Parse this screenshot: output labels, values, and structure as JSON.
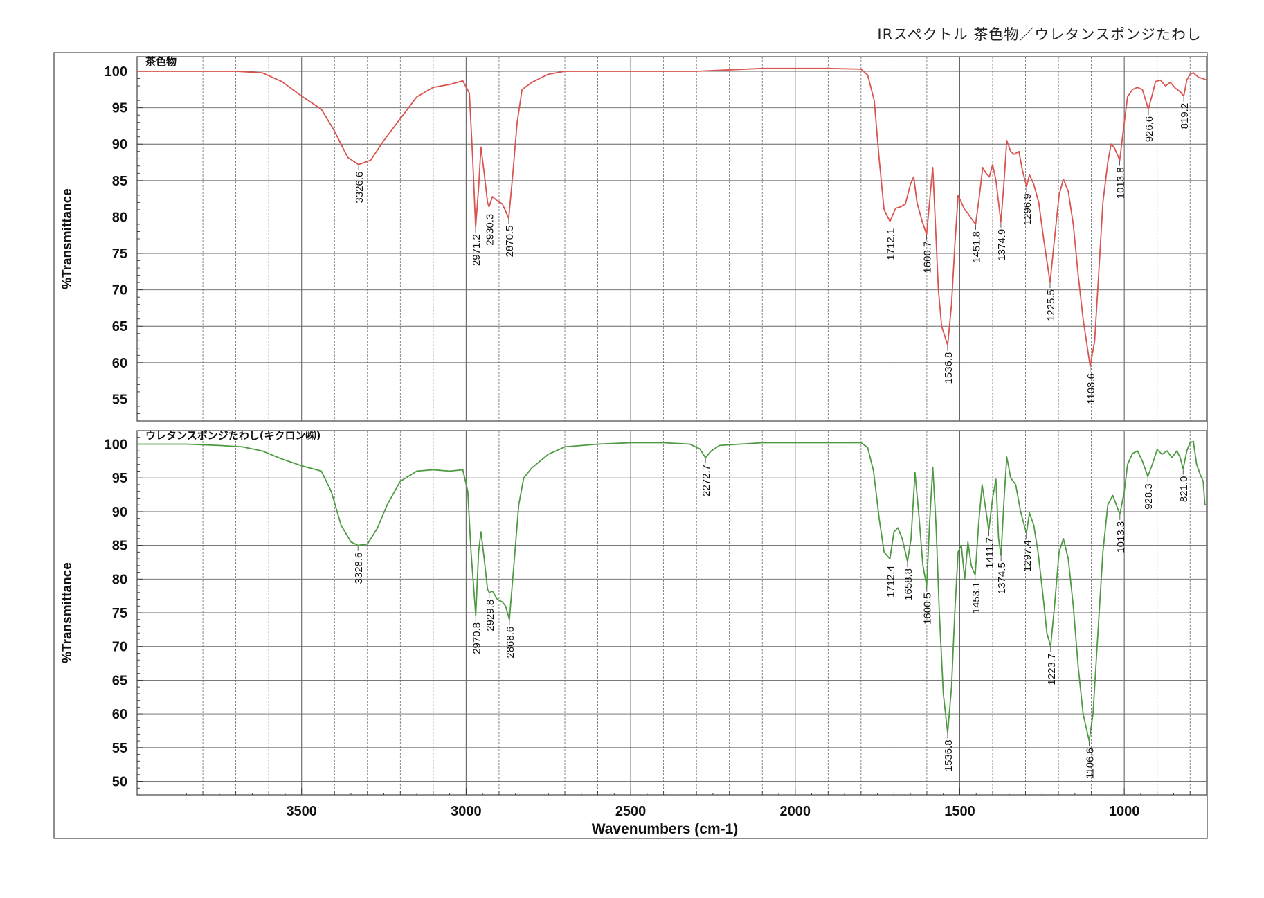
{
  "page_title": "IRスペクトル 茶色物／ウレタンスポンジたわし",
  "colors": {
    "top_series": "#d9534f",
    "bottom_series": "#4e9a43",
    "grid": "#666666",
    "frame": "#444444"
  },
  "chart_data": [
    {
      "type": "line",
      "title": "茶色物",
      "ylabel": "%Transmittance",
      "xlabel": "Wavenumbers (cm-1)",
      "x_reversed": true,
      "xlim": [
        4000,
        750
      ],
      "ylim": [
        52,
        102
      ],
      "yticks": [
        100,
        95,
        90,
        85,
        80,
        75,
        70,
        65,
        60,
        55
      ],
      "grid": true,
      "series": [
        {
          "points": [
            [
              4000,
              100
            ],
            [
              3800,
              100
            ],
            [
              3700,
              100
            ],
            [
              3620,
              99.8
            ],
            [
              3560,
              98.6
            ],
            [
              3500,
              96.6
            ],
            [
              3440,
              94.8
            ],
            [
              3400,
              91.8
            ],
            [
              3360,
              88.2
            ],
            [
              3326.6,
              87.2
            ],
            [
              3290,
              87.8
            ],
            [
              3250,
              90.5
            ],
            [
              3200,
              93.5
            ],
            [
              3150,
              96.5
            ],
            [
              3100,
              97.8
            ],
            [
              3050,
              98.2
            ],
            [
              3010,
              98.7
            ],
            [
              2990,
              97
            ],
            [
              2980,
              88
            ],
            [
              2971.2,
              78.6
            ],
            [
              2962,
              84
            ],
            [
              2955,
              89.6
            ],
            [
              2945,
              86
            ],
            [
              2935,
              82
            ],
            [
              2930.3,
              81.4
            ],
            [
              2920,
              82.8
            ],
            [
              2905,
              82.2
            ],
            [
              2890,
              81.8
            ],
            [
              2880,
              80.8
            ],
            [
              2870.5,
              79.8
            ],
            [
              2858,
              86
            ],
            [
              2845,
              93
            ],
            [
              2830,
              97.5
            ],
            [
              2800,
              98.5
            ],
            [
              2750,
              99.6
            ],
            [
              2700,
              100
            ],
            [
              2500,
              100
            ],
            [
              2300,
              100
            ],
            [
              2100,
              100.4
            ],
            [
              1900,
              100.4
            ],
            [
              1800,
              100.3
            ],
            [
              1780,
              99.5
            ],
            [
              1760,
              96
            ],
            [
              1745,
              88
            ],
            [
              1730,
              81
            ],
            [
              1712.1,
              79.4
            ],
            [
              1695,
              81.2
            ],
            [
              1680,
              81.4
            ],
            [
              1665,
              81.8
            ],
            [
              1650,
              84.5
            ],
            [
              1640,
              85.5
            ],
            [
              1630,
              82
            ],
            [
              1615,
              79.5
            ],
            [
              1600.7,
              77.6
            ],
            [
              1590,
              83
            ],
            [
              1582,
              86.8
            ],
            [
              1573,
              78
            ],
            [
              1565,
              70
            ],
            [
              1555,
              65
            ],
            [
              1536.8,
              62.4
            ],
            [
              1525,
              68
            ],
            [
              1515,
              76
            ],
            [
              1505,
              83
            ],
            [
              1495,
              82
            ],
            [
              1485,
              81
            ],
            [
              1475,
              80.5
            ],
            [
              1465,
              79.8
            ],
            [
              1451.8,
              79
            ],
            [
              1440,
              83
            ],
            [
              1430,
              86.8
            ],
            [
              1420,
              86
            ],
            [
              1410,
              85.5
            ],
            [
              1400,
              87.2
            ],
            [
              1390,
              85
            ],
            [
              1374.9,
              79.3
            ],
            [
              1365,
              85
            ],
            [
              1357,
              90.5
            ],
            [
              1345,
              89
            ],
            [
              1335,
              88.6
            ],
            [
              1320,
              89
            ],
            [
              1310,
              86.5
            ],
            [
              1296.9,
              84.2
            ],
            [
              1288,
              85.8
            ],
            [
              1275,
              84.5
            ],
            [
              1260,
              82
            ],
            [
              1245,
              77
            ],
            [
              1225.5,
              71
            ],
            [
              1212,
              77
            ],
            [
              1198,
              83
            ],
            [
              1185,
              85.2
            ],
            [
              1170,
              83.5
            ],
            [
              1155,
              79
            ],
            [
              1140,
              72
            ],
            [
              1125,
              66
            ],
            [
              1103.6,
              59.5
            ],
            [
              1090,
              63
            ],
            [
              1078,
              72
            ],
            [
              1065,
              82
            ],
            [
              1050,
              87.5
            ],
            [
              1040,
              90
            ],
            [
              1030,
              89.5
            ],
            [
              1013.8,
              87.8
            ],
            [
              1000,
              93
            ],
            [
              990,
              96.5
            ],
            [
              975,
              97.5
            ],
            [
              960,
              97.8
            ],
            [
              945,
              97.5
            ],
            [
              926.6,
              94.8
            ],
            [
              915,
              96.8
            ],
            [
              905,
              98.6
            ],
            [
              890,
              98.8
            ],
            [
              875,
              98
            ],
            [
              860,
              98.5
            ],
            [
              845,
              97.7
            ],
            [
              830,
              97.2
            ],
            [
              819.2,
              96.6
            ],
            [
              810,
              98.8
            ],
            [
              800,
              99.6
            ],
            [
              790,
              99.8
            ],
            [
              775,
              99.2
            ],
            [
              760,
              99
            ],
            [
              750,
              98.8
            ]
          ]
        }
      ],
      "peak_labels": [
        "3326.6",
        "2971.2",
        "2930.3",
        "2870.5",
        "1712.1",
        "1600.7",
        "1536.8",
        "1451.8",
        "1374.9",
        "1296.9",
        "1225.5",
        "1103.6",
        "1013.8",
        "926.6",
        "819.2"
      ],
      "peak_positions": [
        3326.6,
        2971.2,
        2930.3,
        2870.5,
        1712.1,
        1600.7,
        1536.8,
        1451.8,
        1374.9,
        1296.9,
        1225.5,
        1103.6,
        1013.8,
        926.6,
        819.2
      ]
    },
    {
      "type": "line",
      "title": "ウレタンスポンジたわし(キクロン㈱)",
      "ylabel": "%Transmittance",
      "xlabel": "Wavenumbers (cm-1)",
      "x_reversed": true,
      "xlim": [
        4000,
        750
      ],
      "ylim": [
        48,
        102
      ],
      "yticks": [
        100,
        95,
        90,
        85,
        80,
        75,
        70,
        65,
        60,
        55,
        50
      ],
      "xticks": [
        3500,
        3000,
        2500,
        2000,
        1500,
        1000
      ],
      "grid": true,
      "series": [
        {
          "points": [
            [
              4000,
              100
            ],
            [
              3850,
              100
            ],
            [
              3750,
              99.8
            ],
            [
              3680,
              99.6
            ],
            [
              3620,
              99
            ],
            [
              3560,
              97.8
            ],
            [
              3500,
              96.8
            ],
            [
              3440,
              96
            ],
            [
              3410,
              93
            ],
            [
              3380,
              88
            ],
            [
              3350,
              85.5
            ],
            [
              3328.6,
              85
            ],
            [
              3300,
              85.2
            ],
            [
              3270,
              87.5
            ],
            [
              3240,
              91
            ],
            [
              3200,
              94.5
            ],
            [
              3150,
              96
            ],
            [
              3100,
              96.2
            ],
            [
              3050,
              96
            ],
            [
              3010,
              96.2
            ],
            [
              2995,
              93
            ],
            [
              2985,
              84
            ],
            [
              2970.8,
              74.6
            ],
            [
              2962,
              84
            ],
            [
              2955,
              87
            ],
            [
              2945,
              83
            ],
            [
              2935,
              78.5
            ],
            [
              2929.8,
              78
            ],
            [
              2920,
              78.2
            ],
            [
              2905,
              77
            ],
            [
              2890,
              76.6
            ],
            [
              2880,
              76
            ],
            [
              2868.6,
              74
            ],
            [
              2855,
              82
            ],
            [
              2840,
              91
            ],
            [
              2825,
              95
            ],
            [
              2800,
              96.5
            ],
            [
              2750,
              98.5
            ],
            [
              2700,
              99.6
            ],
            [
              2600,
              100
            ],
            [
              2500,
              100.2
            ],
            [
              2400,
              100.2
            ],
            [
              2320,
              100
            ],
            [
              2290,
              99.3
            ],
            [
              2272.7,
              98
            ],
            [
              2255,
              99
            ],
            [
              2230,
              99.8
            ],
            [
              2100,
              100.2
            ],
            [
              1900,
              100.2
            ],
            [
              1800,
              100.2
            ],
            [
              1780,
              99.5
            ],
            [
              1762,
              96
            ],
            [
              1745,
              89
            ],
            [
              1730,
              84
            ],
            [
              1712.4,
              83
            ],
            [
              1700,
              87
            ],
            [
              1688,
              87.6
            ],
            [
              1675,
              86
            ],
            [
              1658.8,
              82.6
            ],
            [
              1648,
              86
            ],
            [
              1636,
              95.8
            ],
            [
              1625,
              90
            ],
            [
              1612,
              82
            ],
            [
              1600.5,
              79
            ],
            [
              1592,
              88
            ],
            [
              1582,
              96.6
            ],
            [
              1572,
              88
            ],
            [
              1562,
              75
            ],
            [
              1550,
              63
            ],
            [
              1536.8,
              57.2
            ],
            [
              1525,
              64
            ],
            [
              1515,
              75
            ],
            [
              1505,
              84
            ],
            [
              1495,
              85
            ],
            [
              1485,
              80
            ],
            [
              1475,
              85.5
            ],
            [
              1465,
              82
            ],
            [
              1453.1,
              80.6
            ],
            [
              1443,
              88
            ],
            [
              1432,
              94
            ],
            [
              1420,
              90
            ],
            [
              1411.7,
              87.2
            ],
            [
              1400,
              92
            ],
            [
              1390,
              94.8
            ],
            [
              1382,
              86
            ],
            [
              1374.5,
              83.5
            ],
            [
              1365,
              92
            ],
            [
              1357,
              98.1
            ],
            [
              1345,
              95
            ],
            [
              1330,
              94
            ],
            [
              1315,
              90
            ],
            [
              1297.4,
              86.8
            ],
            [
              1288,
              89.8
            ],
            [
              1275,
              88
            ],
            [
              1262,
              84
            ],
            [
              1248,
              78
            ],
            [
              1235,
              72
            ],
            [
              1223.7,
              70
            ],
            [
              1212,
              76
            ],
            [
              1198,
              84
            ],
            [
              1185,
              86
            ],
            [
              1170,
              83
            ],
            [
              1155,
              76
            ],
            [
              1140,
              67
            ],
            [
              1125,
              60
            ],
            [
              1106.6,
              56
            ],
            [
              1095,
              60
            ],
            [
              1080,
              72
            ],
            [
              1065,
              84
            ],
            [
              1050,
              91
            ],
            [
              1035,
              92.4
            ],
            [
              1013.3,
              89.6
            ],
            [
              1000,
              93
            ],
            [
              990,
              97
            ],
            [
              975,
              98.6
            ],
            [
              960,
              99
            ],
            [
              945,
              97.5
            ],
            [
              928.3,
              95.2
            ],
            [
              915,
              97
            ],
            [
              900,
              99.2
            ],
            [
              885,
              98.5
            ],
            [
              870,
              99
            ],
            [
              855,
              98
            ],
            [
              840,
              99
            ],
            [
              830,
              98
            ],
            [
              821,
              96.3
            ],
            [
              810,
              99
            ],
            [
              800,
              100.2
            ],
            [
              790,
              100.4
            ],
            [
              780,
              97
            ],
            [
              770,
              95.6
            ],
            [
              760,
              94.5
            ],
            [
              755,
              91
            ],
            [
              750,
              91
            ]
          ]
        }
      ],
      "peak_labels": [
        "3328.6",
        "2970.8",
        "2929.8",
        "2868.6",
        "2272.7",
        "1712.4",
        "1658.8",
        "1600.5",
        "1536.8",
        "1453.1",
        "1411.7",
        "1374.5",
        "1297.4",
        "1223.7",
        "1106.6",
        "1013.3",
        "928.3",
        "821.0"
      ],
      "peak_positions": [
        3328.6,
        2970.8,
        2929.8,
        2868.6,
        2272.7,
        1712.4,
        1658.8,
        1600.5,
        1536.8,
        1453.1,
        1411.7,
        1374.5,
        1297.4,
        1223.7,
        1106.6,
        1013.3,
        928.3,
        821.0
      ]
    }
  ]
}
